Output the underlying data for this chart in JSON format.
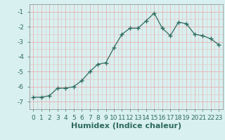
{
  "x": [
    0,
    1,
    2,
    3,
    4,
    5,
    6,
    7,
    8,
    9,
    10,
    11,
    12,
    13,
    14,
    15,
    16,
    17,
    18,
    19,
    20,
    21,
    22,
    23
  ],
  "y": [
    -6.7,
    -6.7,
    -6.6,
    -6.1,
    -6.1,
    -6.0,
    -5.6,
    -5.0,
    -4.5,
    -4.4,
    -3.4,
    -2.5,
    -2.1,
    -2.1,
    -1.6,
    -1.1,
    -2.1,
    -2.6,
    -1.7,
    -1.8,
    -2.5,
    -2.6,
    -2.8,
    -3.2
  ],
  "xlabel": "Humidex (Indice chaleur)",
  "ylim": [
    -7.5,
    -0.5
  ],
  "xlim": [
    -0.5,
    23.5
  ],
  "yticks": [
    -7,
    -6,
    -5,
    -4,
    -3,
    -2,
    -1
  ],
  "line_color": "#2e6b5e",
  "marker": "+",
  "bg_color": "#d9f0f0",
  "grid_color": "#e8b0b0",
  "tick_fontsize": 6.5,
  "label_fontsize": 8
}
